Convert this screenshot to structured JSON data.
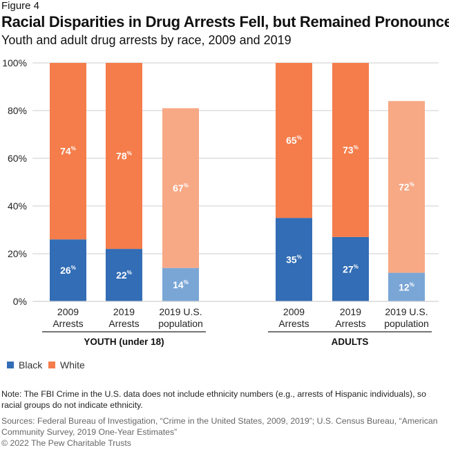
{
  "figure_label": "Figure 4",
  "chart_data": {
    "type": "bar",
    "stacked": true,
    "title": "Racial Disparities in Drug Arrests Fell, but Remained Pronounced",
    "subtitle": "Youth and adult drug arrests by race, 2009 and 2019",
    "ylim": [
      0,
      100
    ],
    "yticks": [
      "0%",
      "20%",
      "40%",
      "60%",
      "80%",
      "100%"
    ],
    "ytick_values": [
      0,
      20,
      40,
      60,
      80,
      100
    ],
    "grid": true,
    "groups": [
      {
        "label": "YOUTH (under 18)",
        "categories": [
          {
            "line1": "2009",
            "line2": "Arrests",
            "black": 26,
            "white": 74,
            "population": false
          },
          {
            "line1": "2019",
            "line2": "Arrests",
            "black": 22,
            "white": 78,
            "population": false
          },
          {
            "line1": "2019 U.S.",
            "line2": "population",
            "black": 14,
            "white": 67,
            "population": true
          }
        ]
      },
      {
        "label": "ADULTS",
        "categories": [
          {
            "line1": "2009",
            "line2": "Arrests",
            "black": 35,
            "white": 65,
            "population": false
          },
          {
            "line1": "2019",
            "line2": "Arrests",
            "black": 27,
            "white": 73,
            "population": false
          },
          {
            "line1": "2019 U.S.",
            "line2": "population",
            "black": 12,
            "white": 72,
            "population": true
          }
        ]
      }
    ],
    "series": [
      {
        "name": "Black",
        "color": "#326db5",
        "light_color": "#7aa6d6"
      },
      {
        "name": "White",
        "color": "#f47d4b",
        "light_color": "#f7a885"
      }
    ],
    "legend_placement": "bottom-left",
    "value_suffix": "%"
  },
  "note": "Note: The FBI Crime in the U.S. data does not include ethnicity numbers (e.g., arrests of Hispanic individuals), so racial groups do not indicate ethnicity.",
  "sources": "Sources: Federal Bureau of Investigation, “Crime in the United States, 2009, 2019”; U.S. Census Bureau, “American Community Survey, 2019 One-Year Estimates”",
  "copyright": "© 2022 The Pew Charitable Trusts"
}
